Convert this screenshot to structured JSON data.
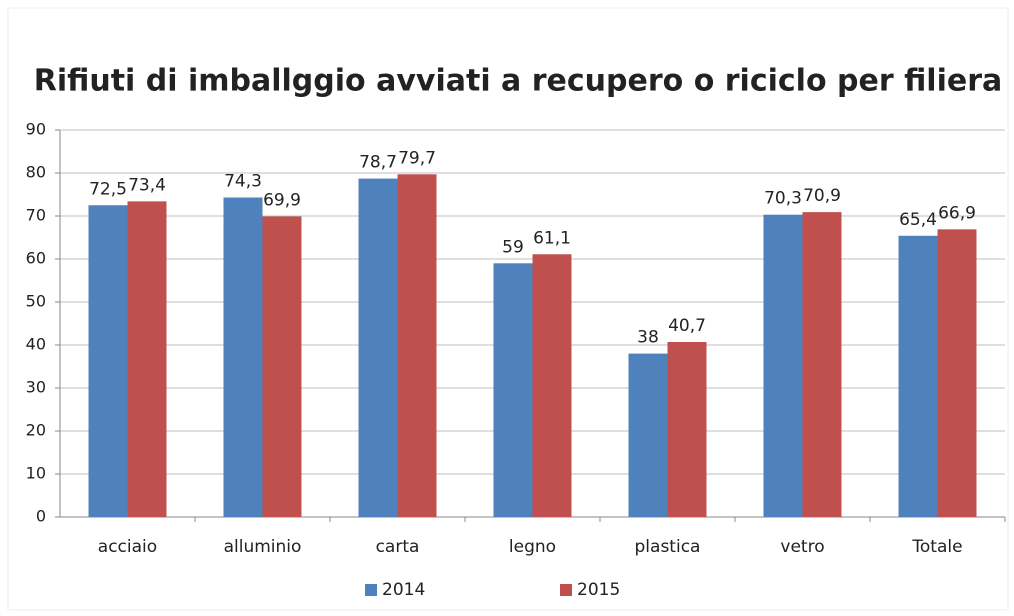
{
  "chart_data": {
    "type": "bar",
    "title": "Rifiuti di imballggio avviati a recupero o riciclo per filiera",
    "categories": [
      "acciaio",
      "alluminio",
      "carta",
      "legno",
      "plastica",
      "vetro",
      "Totale"
    ],
    "series": [
      {
        "name": "2014",
        "color": "#4f81bd",
        "values": [
          72.5,
          74.3,
          78.7,
          59,
          38,
          70.3,
          65.4
        ],
        "value_labels": [
          "72,5",
          "74,3",
          "78,7",
          "59",
          "38",
          "70,3",
          "65,4"
        ]
      },
      {
        "name": "2015",
        "color": "#c0504d",
        "values": [
          73.4,
          69.9,
          79.7,
          61.1,
          40.7,
          70.9,
          66.9
        ],
        "value_labels": [
          "73,4",
          "69,9",
          "79,7",
          "61,1",
          "40,7",
          "70,9",
          "66,9"
        ]
      }
    ],
    "ylim": [
      0,
      90
    ],
    "yticks": [
      0,
      10,
      20,
      30,
      40,
      50,
      60,
      70,
      80,
      90
    ],
    "grid": true,
    "legend": "bottom"
  }
}
